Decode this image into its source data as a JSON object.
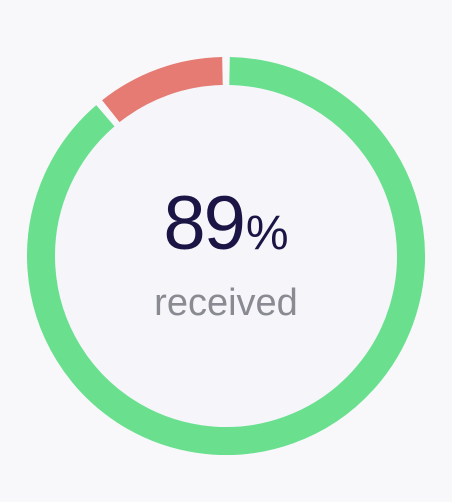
{
  "gauge": {
    "value": "89",
    "unit": "%",
    "label": "received",
    "fraction_received": 0.89,
    "fraction_missing": 0.11
  },
  "colors": {
    "background": "#f8f8fb",
    "inner": "#f5f5fa",
    "received": "#6ae08f",
    "missing": "#e57b72",
    "value_text": "#1a1545",
    "label_text": "#8a8a93"
  }
}
